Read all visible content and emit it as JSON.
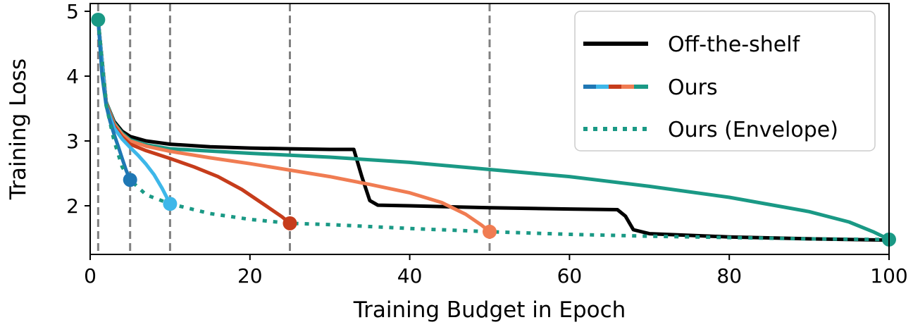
{
  "chart_data": {
    "type": "line",
    "xlabel": "Training Budget in Epoch",
    "ylabel": "Training Loss",
    "xlim": [
      0,
      100
    ],
    "ylim": [
      1.25,
      5.12
    ],
    "xticks": [
      0,
      20,
      40,
      60,
      80,
      100
    ],
    "yticks": [
      2,
      3,
      4,
      5
    ],
    "grid": false,
    "legend_position": "top-right",
    "vlines": [
      1,
      5,
      10,
      25,
      50
    ],
    "colors": {
      "off_the_shelf": "#000000",
      "budget_5": "#1f77b4",
      "budget_10": "#3db7e9",
      "budget_25": "#c63c1b",
      "budget_50": "#f07c52",
      "budget_100": "#1a9985",
      "vline": "#808080"
    },
    "legend": [
      {
        "label": "Off-the-shelf"
      },
      {
        "label": "Ours"
      },
      {
        "label": "Ours (Envelope)"
      }
    ],
    "series": [
      {
        "key": "off_the_shelf",
        "x": [
          1,
          2,
          3,
          4,
          5,
          7,
          10,
          15,
          20,
          25,
          30,
          33,
          34,
          35,
          36,
          40,
          50,
          60,
          66,
          67,
          68,
          70,
          80,
          90,
          100
        ],
        "y": [
          4.87,
          3.6,
          3.3,
          3.15,
          3.07,
          3.0,
          2.95,
          2.91,
          2.89,
          2.88,
          2.87,
          2.87,
          2.45,
          2.08,
          2.01,
          2.0,
          1.97,
          1.95,
          1.94,
          1.84,
          1.63,
          1.57,
          1.52,
          1.49,
          1.47
        ]
      },
      {
        "key": "budget_100",
        "x": [
          1,
          2,
          3,
          4,
          5,
          7,
          10,
          20,
          30,
          40,
          50,
          60,
          70,
          80,
          90,
          95,
          98,
          100
        ],
        "y": [
          4.87,
          3.6,
          3.28,
          3.12,
          3.02,
          2.94,
          2.88,
          2.81,
          2.75,
          2.67,
          2.56,
          2.45,
          2.3,
          2.13,
          1.91,
          1.75,
          1.6,
          1.48
        ]
      },
      {
        "key": "budget_50",
        "x": [
          1,
          2,
          3,
          4,
          5,
          7,
          10,
          15,
          20,
          25,
          30,
          35,
          40,
          44,
          47,
          49,
          50
        ],
        "y": [
          4.87,
          3.58,
          3.26,
          3.1,
          3.0,
          2.92,
          2.84,
          2.74,
          2.65,
          2.55,
          2.45,
          2.33,
          2.2,
          2.05,
          1.87,
          1.7,
          1.6
        ]
      },
      {
        "key": "budget_25",
        "x": [
          1,
          2,
          3,
          4,
          5,
          7,
          10,
          13,
          16,
          19,
          22,
          24,
          25
        ],
        "y": [
          4.87,
          3.57,
          3.23,
          3.06,
          2.95,
          2.85,
          2.73,
          2.6,
          2.45,
          2.25,
          2.0,
          1.83,
          1.73
        ]
      },
      {
        "key": "budget_10",
        "x": [
          1,
          2,
          3,
          4,
          5,
          6,
          7,
          8,
          9,
          10
        ],
        "y": [
          4.87,
          3.55,
          3.2,
          3.03,
          2.9,
          2.78,
          2.64,
          2.48,
          2.27,
          2.03
        ]
      },
      {
        "key": "budget_5",
        "x": [
          1,
          1.5,
          2,
          2.5,
          3,
          3.5,
          4,
          4.5,
          5
        ],
        "y": [
          4.87,
          4.0,
          3.55,
          3.3,
          3.1,
          2.92,
          2.73,
          2.55,
          2.4
        ]
      },
      {
        "key": "envelope",
        "x": [
          1,
          2,
          3,
          4,
          5,
          7,
          10,
          15,
          20,
          25,
          30,
          40,
          50,
          60,
          70,
          80,
          90,
          100
        ],
        "y": [
          4.87,
          3.55,
          3.0,
          2.6,
          2.4,
          2.17,
          2.03,
          1.88,
          1.79,
          1.73,
          1.71,
          1.65,
          1.6,
          1.56,
          1.53,
          1.51,
          1.49,
          1.48
        ]
      }
    ],
    "endpoints": [
      {
        "key": "budget_100",
        "x": 1,
        "y": 4.87
      },
      {
        "key": "budget_5",
        "x": 5,
        "y": 2.4
      },
      {
        "key": "budget_10",
        "x": 10,
        "y": 2.03
      },
      {
        "key": "budget_25",
        "x": 25,
        "y": 1.73
      },
      {
        "key": "budget_50",
        "x": 50,
        "y": 1.6
      },
      {
        "key": "budget_100",
        "x": 100,
        "y": 1.48
      }
    ]
  }
}
